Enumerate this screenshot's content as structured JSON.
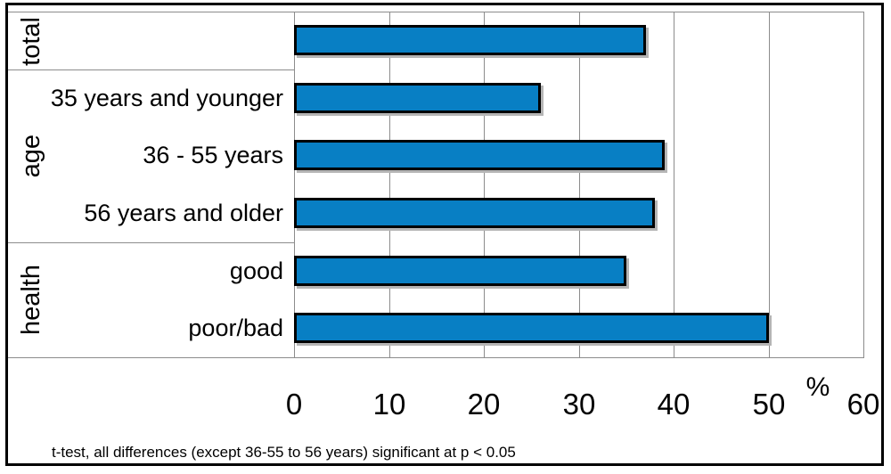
{
  "chart_data": {
    "type": "bar",
    "orientation": "horizontal",
    "title": "",
    "xlabel": "",
    "ylabel": "",
    "unit_label": "%",
    "xlim": [
      0,
      60
    ],
    "xticks": [
      0,
      10,
      20,
      30,
      40,
      50,
      60
    ],
    "grid": "vertical-gridlines-on",
    "legend": "none",
    "bar_color": "#087fc4",
    "bar_border_color": "#000000",
    "groups": [
      {
        "label": "total",
        "rows": [
          {
            "label": "",
            "value": 37
          }
        ]
      },
      {
        "label": "age",
        "rows": [
          {
            "label": "35 years and younger",
            "value": 26
          },
          {
            "label": "36 - 55 years",
            "value": 39
          },
          {
            "label": "56 years and older",
            "value": 38
          }
        ]
      },
      {
        "label": "health",
        "rows": [
          {
            "label": "good",
            "value": 35
          },
          {
            "label": "poor/bad",
            "value": 50
          }
        ]
      }
    ],
    "footnote": "t-test, all differences (except 36-55 to 56 years) significant at p < 0.05"
  }
}
